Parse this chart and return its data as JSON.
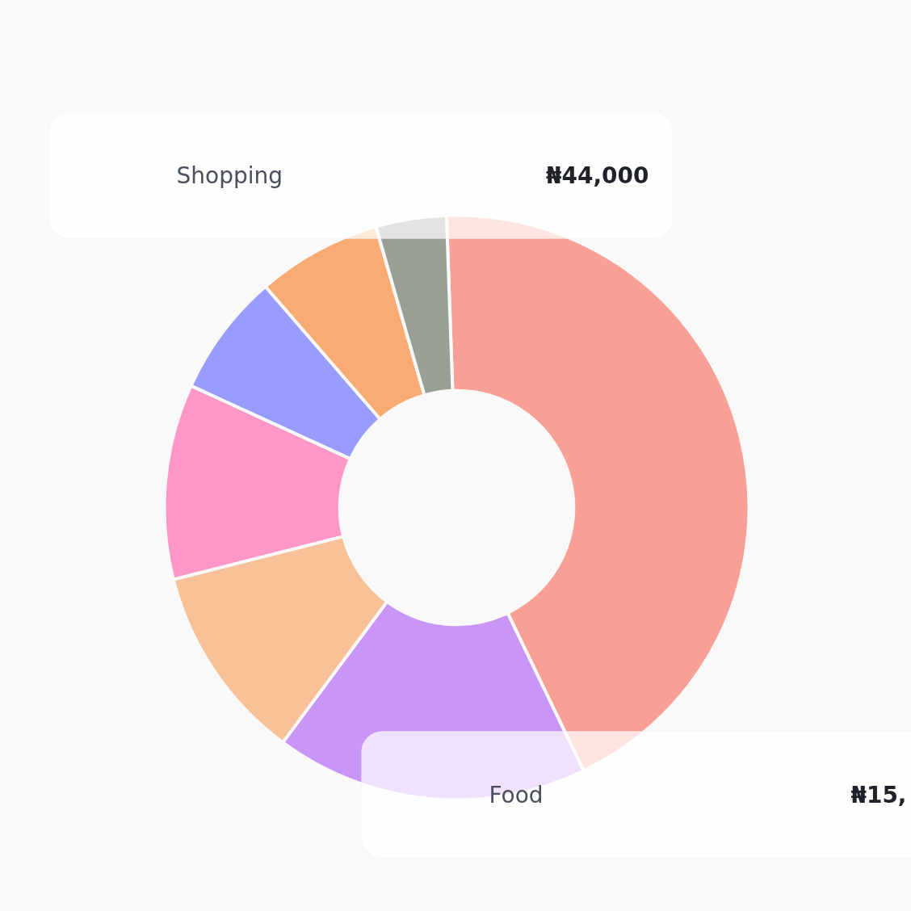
{
  "chart_data": {
    "type": "donut",
    "categories": [
      null,
      null,
      null,
      null,
      null,
      null,
      null
    ],
    "values": [
      43.4,
      17.3,
      10.9,
      10.8,
      6.8,
      6.9,
      3.9
    ],
    "colors": [
      "#f9a096",
      "#c996f8",
      "#f9c197",
      "#fc97c7",
      "#989cfc",
      "#f9ab74",
      "#989f95"
    ],
    "annotations": [
      "Shopping",
      "₦44,000",
      "Food",
      "₦15,"
    ]
  }
}
